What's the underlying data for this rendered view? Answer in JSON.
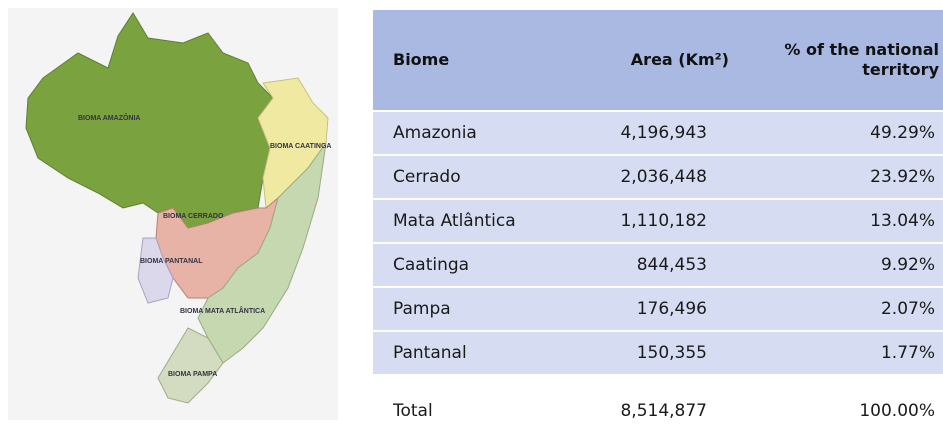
{
  "map": {
    "labels": [
      "BIOMA AMAZÔNIA",
      "BIOMA CAATINGA",
      "BIOMA CERRADO",
      "BIOMA PANTANAL",
      "BIOMA MATA ATLÂNTICA",
      "BIOMA PAMPA"
    ]
  },
  "table": {
    "header": [
      "Biome",
      "Area (Km²)",
      "% of the national territory"
    ],
    "rows": [
      [
        "Amazonia",
        "4,196,943",
        "49.29%"
      ],
      [
        "Cerrado",
        "2,036,448",
        "23.92%"
      ],
      [
        "Mata Atlântica",
        "1,110,182",
        "13.04%"
      ],
      [
        "Caatinga",
        "844,453",
        "9.92%"
      ],
      [
        "Pampa",
        "176,496",
        "2.07%"
      ],
      [
        "Pantanal",
        "150,355",
        "1.77%"
      ]
    ],
    "total": [
      "Total",
      "8,514,877",
      "100.00%"
    ]
  }
}
